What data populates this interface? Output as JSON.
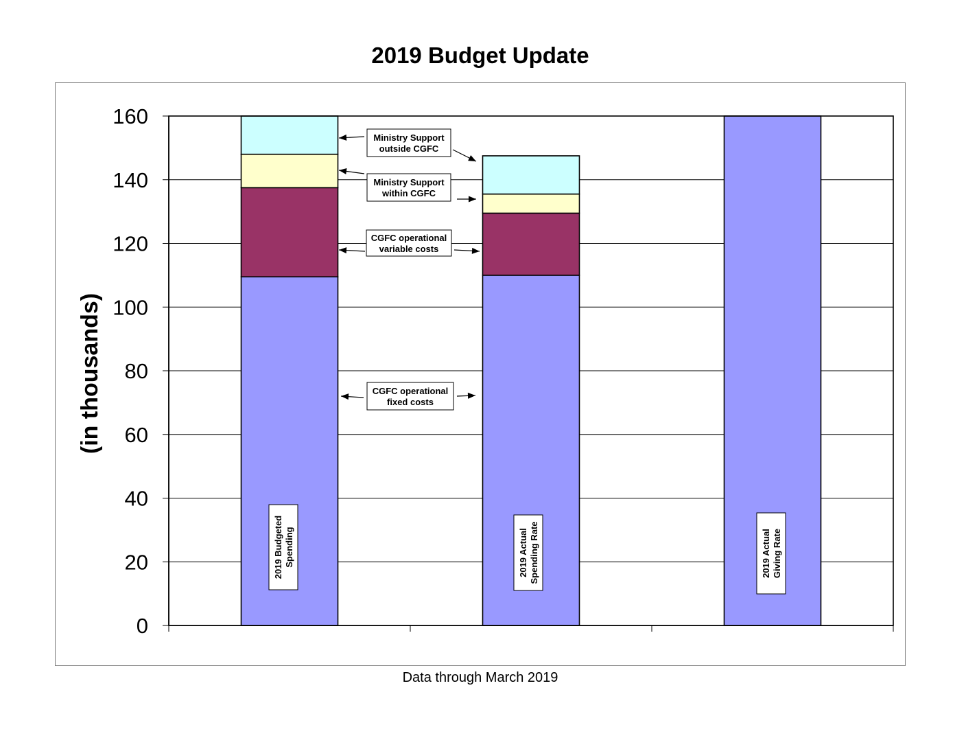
{
  "chart_data": {
    "type": "bar",
    "stacked": true,
    "title": "2019 Budget Update",
    "ylabel": "(in thousands)",
    "footnote": "Data through March 2019",
    "ylim": [
      0,
      160
    ],
    "yticks": [
      0,
      20,
      40,
      60,
      80,
      100,
      120,
      140,
      160
    ],
    "grid": true,
    "categories": [
      "2019  Budgeted Spending",
      "2019 Actual Spending Rate",
      "2019 Actual Giving Rate"
    ],
    "category_labels": [
      [
        "2019  Budgeted",
        "Spending"
      ],
      [
        "2019 Actual",
        "Spending Rate"
      ],
      [
        "2019 Actual",
        "Giving Rate"
      ]
    ],
    "series": [
      {
        "name": "CGFC operational fixed costs",
        "label_lines": [
          "CGFC operational",
          "fixed costs"
        ],
        "color": "#9999FF",
        "values": [
          109.5,
          110,
          160
        ]
      },
      {
        "name": "CGFC operational variable costs",
        "label_lines": [
          "CGFC operational",
          "variable costs"
        ],
        "color": "#993366",
        "values": [
          28,
          19.5,
          0
        ]
      },
      {
        "name": "Ministry Support within  CGFC",
        "label_lines": [
          "Ministry Support",
          "within  CGFC"
        ],
        "color": "#FFFFCC",
        "values": [
          10.5,
          6,
          0
        ]
      },
      {
        "name": "Ministry Support outside CGFC",
        "label_lines": [
          "Ministry Support",
          "outside CGFC"
        ],
        "color": "#CCFFFF",
        "values": [
          12,
          12,
          0
        ]
      }
    ]
  }
}
